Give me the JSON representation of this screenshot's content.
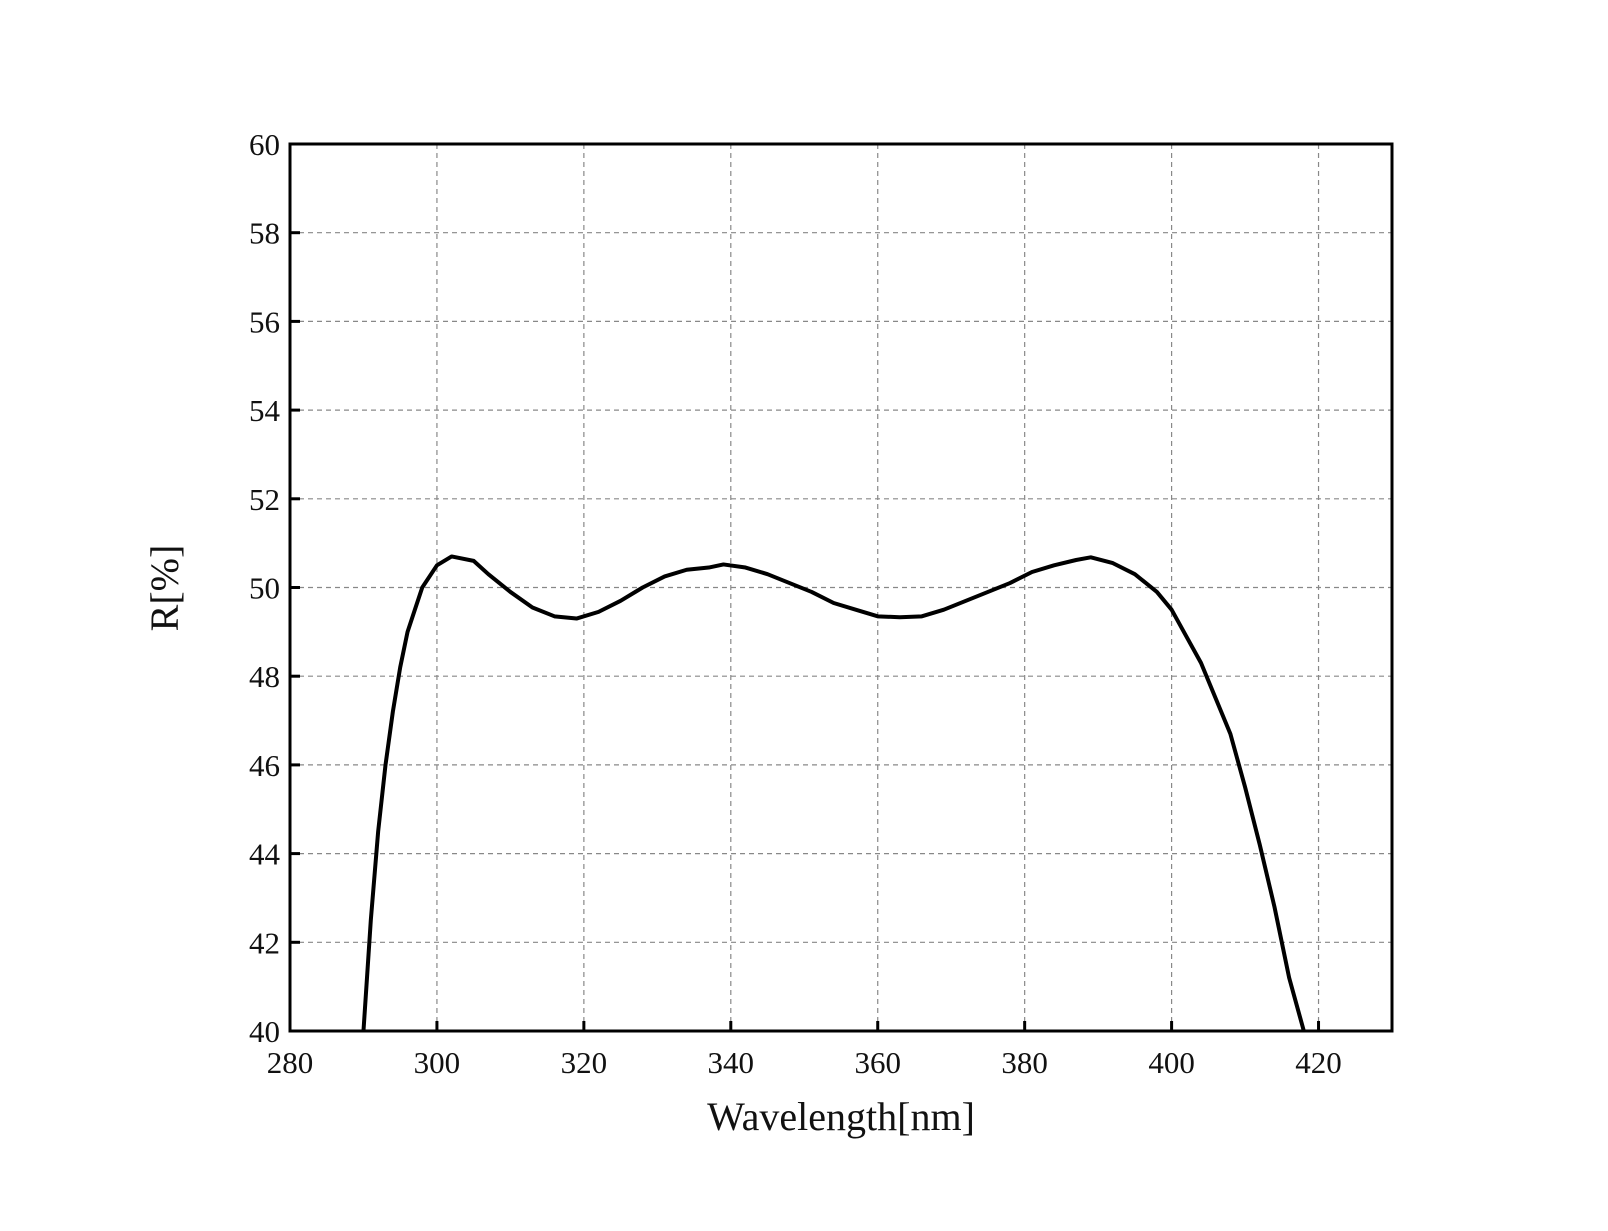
{
  "chart_data": {
    "type": "line",
    "x_label": "Wavelength[nm]",
    "y_label": "R[%]",
    "x": [
      290,
      291,
      292,
      293,
      294,
      295,
      296,
      297,
      298,
      300,
      302,
      305,
      307,
      310,
      313,
      316,
      319,
      322,
      325,
      328,
      331,
      334,
      337,
      339,
      342,
      345,
      348,
      351,
      354,
      357,
      360,
      363,
      366,
      369,
      372,
      375,
      378,
      381,
      384,
      387,
      389,
      392,
      395,
      398,
      400,
      402,
      404,
      406,
      408,
      410,
      412,
      414,
      416,
      418
    ],
    "series": [
      {
        "color": "#000000",
        "values": [
          40,
          42.5,
          44.5,
          46,
          47.2,
          48.2,
          49,
          49.5,
          50,
          50.5,
          50.7,
          50.6,
          50.3,
          49.9,
          49.55,
          49.35,
          49.3,
          49.45,
          49.7,
          50,
          50.25,
          50.4,
          50.45,
          50.52,
          50.45,
          50.3,
          50.1,
          49.9,
          49.65,
          49.5,
          49.35,
          49.33,
          49.35,
          49.5,
          49.7,
          49.9,
          50.1,
          50.35,
          50.5,
          50.62,
          50.68,
          50.55,
          50.3,
          49.9,
          49.5,
          48.9,
          48.3,
          47.5,
          46.7,
          45.5,
          44.2,
          42.8,
          41.2,
          40
        ]
      }
    ],
    "xlim": [
      280,
      430
    ],
    "xticks": [
      280,
      300,
      320,
      340,
      360,
      380,
      400,
      420
    ],
    "ylim": [
      40,
      60
    ],
    "yticks": [
      40,
      42,
      44,
      46,
      48,
      50,
      52,
      54,
      56,
      58,
      60
    ],
    "grid": true
  }
}
